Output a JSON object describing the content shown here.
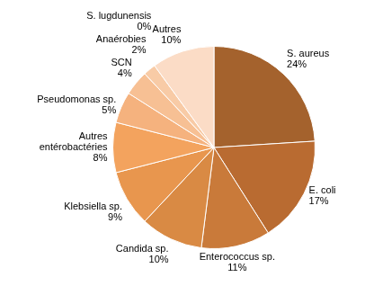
{
  "chart_data": {
    "type": "pie",
    "categories": [
      "S. aureus",
      "E. coli",
      "Enterococcus sp.",
      "Candida sp.",
      "Klebsiella sp.",
      "Autres entérobactéries",
      "Pseudomonas sp.",
      "SCN",
      "Anaérobies",
      "S. lugdunensis",
      "Autres"
    ],
    "values": [
      24,
      17,
      11,
      10,
      9,
      8,
      5,
      4,
      2,
      0,
      10
    ],
    "value_labels": [
      "24%",
      "17%",
      "11%",
      "10%",
      "9%",
      "8%",
      "5%",
      "4%",
      "2%",
      "0%",
      "10%"
    ],
    "colors": [
      "#a4622d",
      "#b96b31",
      "#c97a3a",
      "#d98a44",
      "#e8964e",
      "#f3a35e",
      "#f5b27e",
      "#f7c094",
      "#f8cba6",
      "#f9d4b6",
      "#fbdcc6"
    ],
    "data_labels": true
  }
}
